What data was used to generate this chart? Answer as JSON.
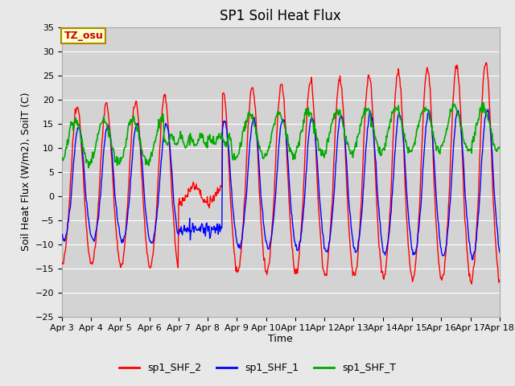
{
  "title": "SP1 Soil Heat Flux",
  "ylabel": "Soil Heat Flux (W/m2), SoilT (C)",
  "xlabel": "Time",
  "ylim": [
    -25,
    35
  ],
  "yticks": [
    -25,
    -20,
    -15,
    -10,
    -5,
    0,
    5,
    10,
    15,
    20,
    25,
    30,
    35
  ],
  "xtick_labels": [
    "Apr 3",
    "Apr 4",
    "Apr 5",
    "Apr 6",
    "Apr 7",
    "Apr 8",
    "Apr 9",
    "Apr 10",
    "Apr 11",
    "Apr 12",
    "Apr 13",
    "Apr 14",
    "Apr 15",
    "Apr 16",
    "Apr 17",
    "Apr 18"
  ],
  "legend_labels": [
    "sp1_SHF_2",
    "sp1_SHF_1",
    "sp1_SHF_T"
  ],
  "legend_colors": [
    "#ff0000",
    "#0000ff",
    "#00aa00"
  ],
  "tz_label": "TZ_osu",
  "bg_color": "#e8e8e8",
  "plot_bg_color": "#d3d3d3",
  "grid_color": "#ffffff",
  "title_fontsize": 12,
  "label_fontsize": 9,
  "tick_fontsize": 8
}
